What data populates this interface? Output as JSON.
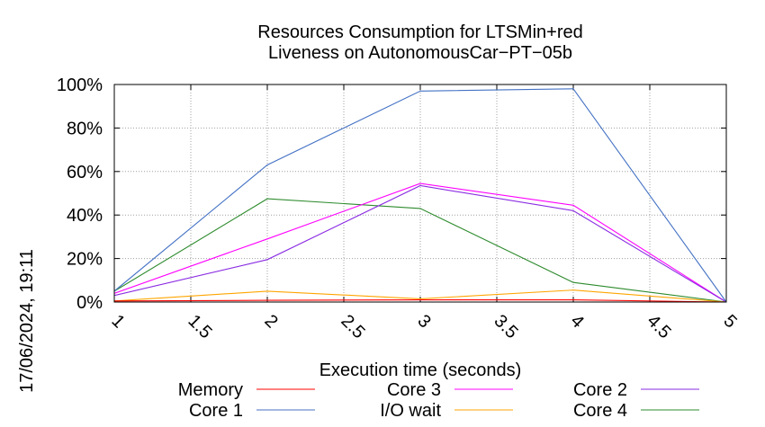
{
  "side_text": "17/06/2024, 19:11",
  "chart_data": {
    "type": "line",
    "title": [
      "Resources Consumption for LTSMin+red",
      "Liveness on AutonomousCar−PT−05b"
    ],
    "xlabel": "Execution time (seconds)",
    "ylabel": "",
    "xlim": [
      1,
      5
    ],
    "ylim": [
      0,
      100
    ],
    "x_ticks": [
      1,
      1.5,
      2,
      2.5,
      3,
      3.5,
      4,
      4.5,
      5
    ],
    "x_tick_labels": [
      "1",
      "1.5",
      "2",
      "2.5",
      "3",
      "3.5",
      "4",
      "4.5",
      "5"
    ],
    "y_ticks": [
      0,
      20,
      40,
      60,
      80,
      100
    ],
    "y_tick_labels": [
      "0%",
      "20%",
      "40%",
      "60%",
      "80%",
      "100%"
    ],
    "grid": true,
    "legend_position": "bottom",
    "x": [
      1,
      2,
      3,
      4,
      5
    ],
    "series": [
      {
        "name": "Memory",
        "color": "#ff0000",
        "values": [
          0.5,
          0.8,
          1.0,
          1.0,
          0
        ]
      },
      {
        "name": "Core 1",
        "color": "#4472c4",
        "values": [
          5,
          63,
          97,
          98,
          0
        ]
      },
      {
        "name": "Core 3",
        "color": "#ff00ff",
        "values": [
          4,
          29,
          54.5,
          44.5,
          0
        ]
      },
      {
        "name": "I/O wait",
        "color": "#ffa500",
        "values": [
          0.5,
          5,
          1.5,
          5.5,
          0
        ]
      },
      {
        "name": "Core 2",
        "color": "#8a2be2",
        "values": [
          3,
          19.5,
          53.5,
          42,
          0
        ]
      },
      {
        "name": "Core 4",
        "color": "#2e8b2e",
        "values": [
          5,
          47.5,
          43,
          9,
          0
        ]
      }
    ]
  }
}
